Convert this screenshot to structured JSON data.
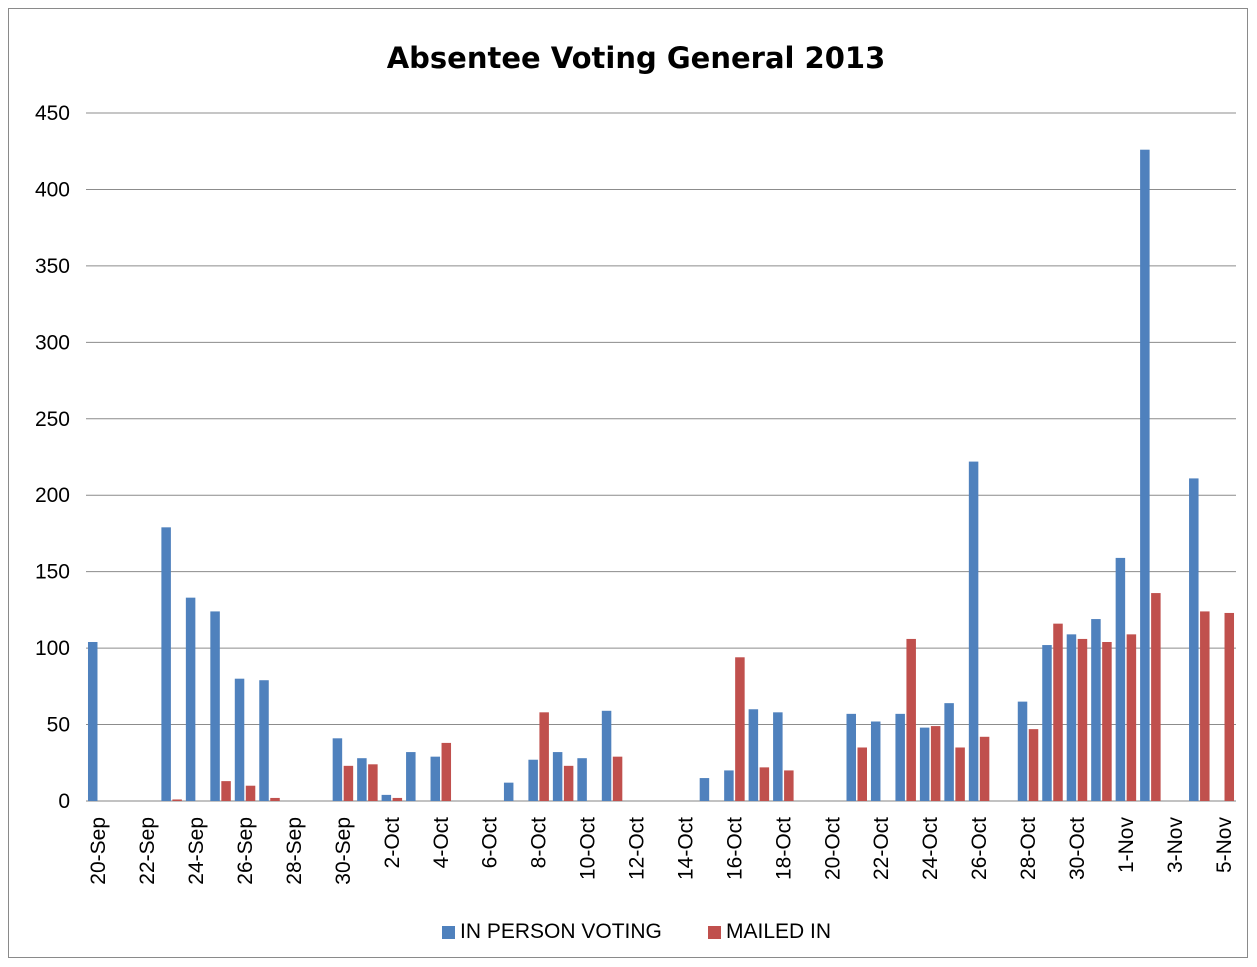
{
  "chart_data": {
    "type": "bar",
    "title": "Absentee Voting General 2013",
    "xlabel": "",
    "ylabel": "",
    "ylim": [
      0,
      450
    ],
    "yticks": [
      0,
      50,
      100,
      150,
      200,
      250,
      300,
      350,
      400,
      450
    ],
    "grid": true,
    "legend_position": "bottom",
    "colors": {
      "IN PERSON VOTING": "#4F81BD",
      "MAILED IN": "#C0504D"
    },
    "categories": [
      "20-Sep",
      "21-Sep",
      "22-Sep",
      "23-Sep",
      "24-Sep",
      "25-Sep",
      "26-Sep",
      "27-Sep",
      "28-Sep",
      "29-Sep",
      "30-Sep",
      "1-Oct",
      "2-Oct",
      "3-Oct",
      "4-Oct",
      "5-Oct",
      "6-Oct",
      "7-Oct",
      "8-Oct",
      "9-Oct",
      "10-Oct",
      "11-Oct",
      "12-Oct",
      "13-Oct",
      "14-Oct",
      "15-Oct",
      "16-Oct",
      "17-Oct",
      "18-Oct",
      "19-Oct",
      "20-Oct",
      "21-Oct",
      "22-Oct",
      "23-Oct",
      "24-Oct",
      "25-Oct",
      "26-Oct",
      "27-Oct",
      "28-Oct",
      "29-Oct",
      "30-Oct",
      "31-Oct",
      "1-Nov",
      "2-Nov",
      "3-Nov",
      "4-Nov",
      "5-Nov"
    ],
    "tick_labels": [
      "20-Sep",
      "22-Sep",
      "24-Sep",
      "26-Sep",
      "28-Sep",
      "30-Sep",
      "2-Oct",
      "4-Oct",
      "6-Oct",
      "8-Oct",
      "10-Oct",
      "12-Oct",
      "14-Oct",
      "16-Oct",
      "18-Oct",
      "20-Oct",
      "22-Oct",
      "24-Oct",
      "26-Oct",
      "28-Oct",
      "30-Oct",
      "1-Nov",
      "3-Nov",
      "5-Nov"
    ],
    "series": [
      {
        "name": "IN PERSON VOTING",
        "values": [
          104,
          0,
          0,
          179,
          133,
          124,
          80,
          79,
          0,
          0,
          41,
          28,
          4,
          32,
          29,
          0,
          0,
          12,
          27,
          32,
          28,
          59,
          0,
          0,
          0,
          15,
          20,
          60,
          58,
          0,
          0,
          57,
          52,
          57,
          48,
          64,
          222,
          0,
          65,
          102,
          109,
          119,
          159,
          426,
          0,
          211,
          0
        ]
      },
      {
        "name": "MAILED IN",
        "values": [
          0,
          0,
          0,
          1,
          0,
          13,
          10,
          2,
          0,
          0,
          23,
          24,
          2,
          0,
          38,
          0,
          0,
          0,
          58,
          23,
          0,
          29,
          0,
          0,
          0,
          0,
          94,
          22,
          20,
          0,
          0,
          35,
          0,
          106,
          49,
          35,
          42,
          0,
          47,
          116,
          106,
          104,
          109,
          136,
          0,
          124,
          123
        ]
      }
    ]
  }
}
